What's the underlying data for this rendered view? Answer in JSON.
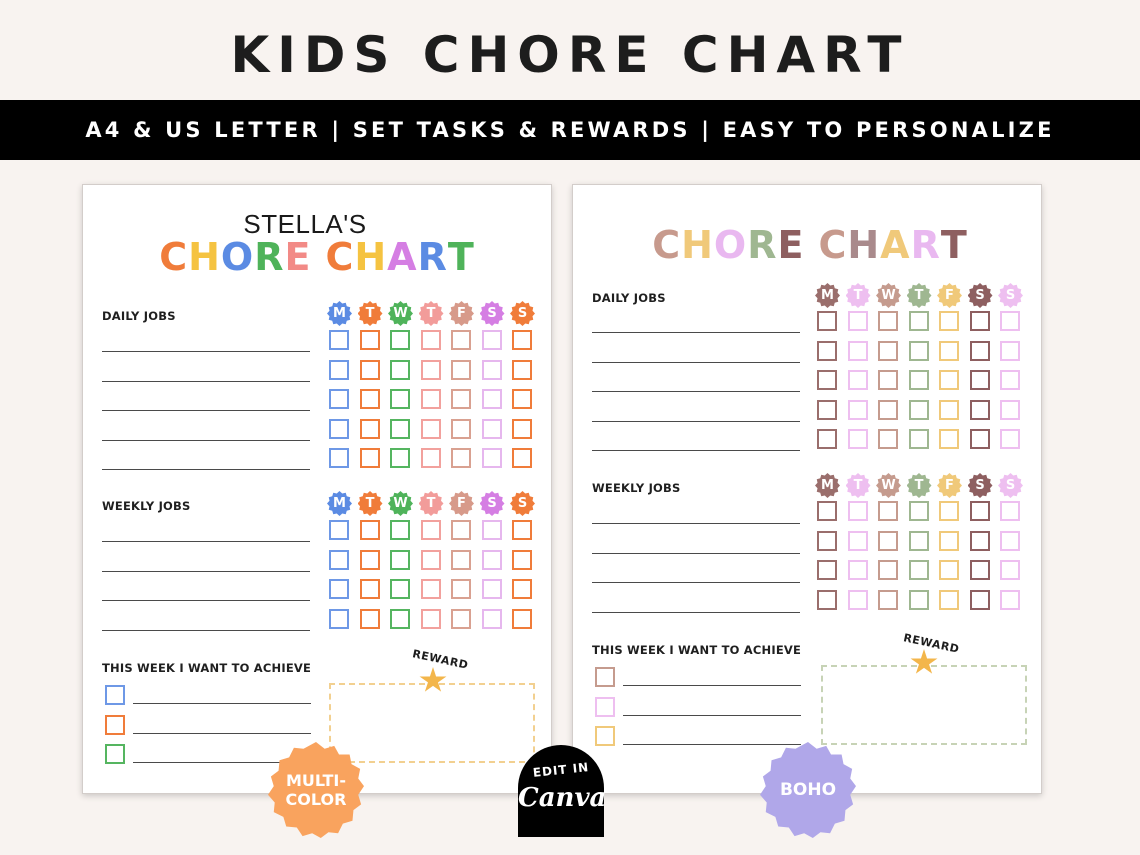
{
  "header": {
    "title": "KIDS CHORE CHART",
    "banner": "A4 & US LETTER | SET TASKS & REWARDS | EASY TO PERSONALIZE"
  },
  "multicolor_sheet": {
    "name": "STELLA'S",
    "title_letters": [
      {
        "ch": "C",
        "color": "#f07c3a"
      },
      {
        "ch": "H",
        "color": "#f5c341"
      },
      {
        "ch": "O",
        "color": "#5b8be3"
      },
      {
        "ch": "R",
        "color": "#4fb35a"
      },
      {
        "ch": "E",
        "color": "#f28a86"
      },
      {
        "ch": " ",
        "color": "#000000"
      },
      {
        "ch": "C",
        "color": "#f07c3a"
      },
      {
        "ch": "H",
        "color": "#f5c341"
      },
      {
        "ch": "A",
        "color": "#d57ee3"
      },
      {
        "ch": "R",
        "color": "#5b8be3"
      },
      {
        "ch": "T",
        "color": "#4fb35a"
      }
    ],
    "daily_label": "DAILY JOBS",
    "weekly_label": "WEEKLY JOBS",
    "achieve_label": "THIS WEEK I WANT TO ACHIEVE",
    "reward_label": "REWARD",
    "days": [
      "M",
      "T",
      "W",
      "T",
      "F",
      "S",
      "S"
    ],
    "day_colors": [
      "#5b8be3",
      "#f07c3a",
      "#4fb35a",
      "#f29c9a",
      "#d79a8a",
      "#d57ee3",
      "#f07c3a"
    ],
    "box_colors": [
      "#6e98e6",
      "#f07c3a",
      "#55b560",
      "#f2a19d",
      "#d9a191",
      "#e6b7ee",
      "#f07c3a"
    ],
    "achieve_colors": [
      "#6e98e6",
      "#f07c3a",
      "#55b560"
    ],
    "reward_border": "#f2d090"
  },
  "boho_sheet": {
    "title_letters": [
      {
        "ch": "C",
        "color": "#c79a8d"
      },
      {
        "ch": "H",
        "color": "#f0c97a"
      },
      {
        "ch": "O",
        "color": "#e9b8f0"
      },
      {
        "ch": "R",
        "color": "#9fb791"
      },
      {
        "ch": "E",
        "color": "#8e5f60"
      },
      {
        "ch": " ",
        "color": "#000000"
      },
      {
        "ch": "C",
        "color": "#c79a8d"
      },
      {
        "ch": "H",
        "color": "#a98a8c"
      },
      {
        "ch": "A",
        "color": "#f0c97a"
      },
      {
        "ch": "R",
        "color": "#e9b8f0"
      },
      {
        "ch": "T",
        "color": "#8e5f60"
      }
    ],
    "daily_label": "DAILY JOBS",
    "weekly_label": "WEEKLY JOBS",
    "achieve_label": "THIS WEEK I WANT TO ACHIEVE",
    "reward_label": "REWARD",
    "days": [
      "M",
      "T",
      "W",
      "T",
      "F",
      "S",
      "S"
    ],
    "day_colors": [
      "#9a6e6c",
      "#eebff0",
      "#c59b8e",
      "#9fb791",
      "#f0c97a",
      "#8e5f60",
      "#eebff0"
    ],
    "box_colors": [
      "#9a6e6c",
      "#eebff0",
      "#c59b8e",
      "#9fb791",
      "#f0c97a",
      "#8e5f60",
      "#eebff0"
    ],
    "achieve_colors": [
      "#c59b8e",
      "#eebff0",
      "#f0c97a"
    ],
    "reward_border": "#c7d3b6"
  },
  "badges": {
    "multicolor": "MULTI-\nCOLOR",
    "canva_top": "EDIT IN",
    "canva_word": "Canva",
    "boho": "BOHO"
  }
}
